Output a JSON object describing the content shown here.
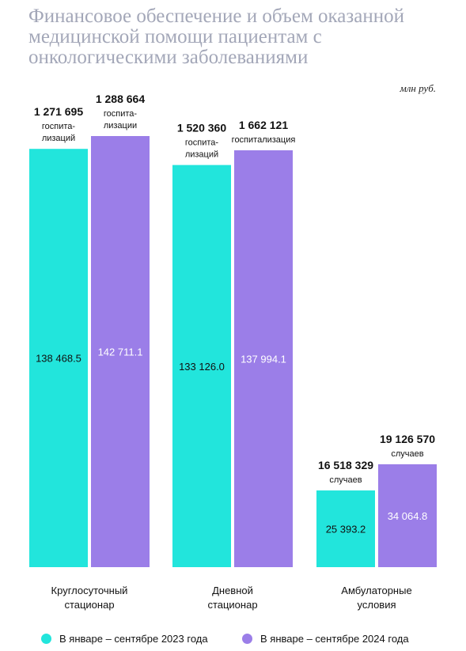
{
  "header": {
    "title": "Финансовое обеспечение и объем оказанной медицинской помощи пациентам с онкологическими заболеваниями",
    "unit": "млн руб."
  },
  "colors": {
    "series_2023": "#22e5dc",
    "series_2024": "#9b7ee8"
  },
  "chart_data": {
    "type": "bar",
    "title": "Финансовое обеспечение и объем оказанной медицинской помощи пациентам с онкологическими заболеваниями",
    "ylabel": "млн руб.",
    "categories": [
      [
        "Круглосуточный",
        "стационар"
      ],
      [
        "Дневной",
        "стационар"
      ],
      [
        "Амбулаторные",
        "условия"
      ]
    ],
    "series": [
      {
        "name": "В январе – сентябре 2023 года",
        "values": [
          138468.5,
          133126.0,
          25393.2
        ],
        "value_labels": [
          "138 468.5",
          "133 126.0",
          "25 393.2"
        ],
        "counts": [
          "1 271 695",
          "1 520 360",
          "16 518 329"
        ],
        "count_units": [
          [
            "госпита-",
            "лизаций"
          ],
          [
            "госпита-",
            "лизаций"
          ],
          [
            "случаев"
          ]
        ]
      },
      {
        "name": "В январе – сентябре 2024 года",
        "values": [
          142711.1,
          137994.1,
          34064.8
        ],
        "value_labels": [
          "142 711.1",
          "137 994.1",
          "34 064.8"
        ],
        "counts": [
          "1 288 664",
          "1 662 121",
          "19 126 570"
        ],
        "count_units": [
          [
            "госпита-",
            "лизации"
          ],
          [
            "госпитализация"
          ],
          [
            "случаев"
          ]
        ]
      }
    ],
    "legend": "bottom",
    "grid": false
  }
}
